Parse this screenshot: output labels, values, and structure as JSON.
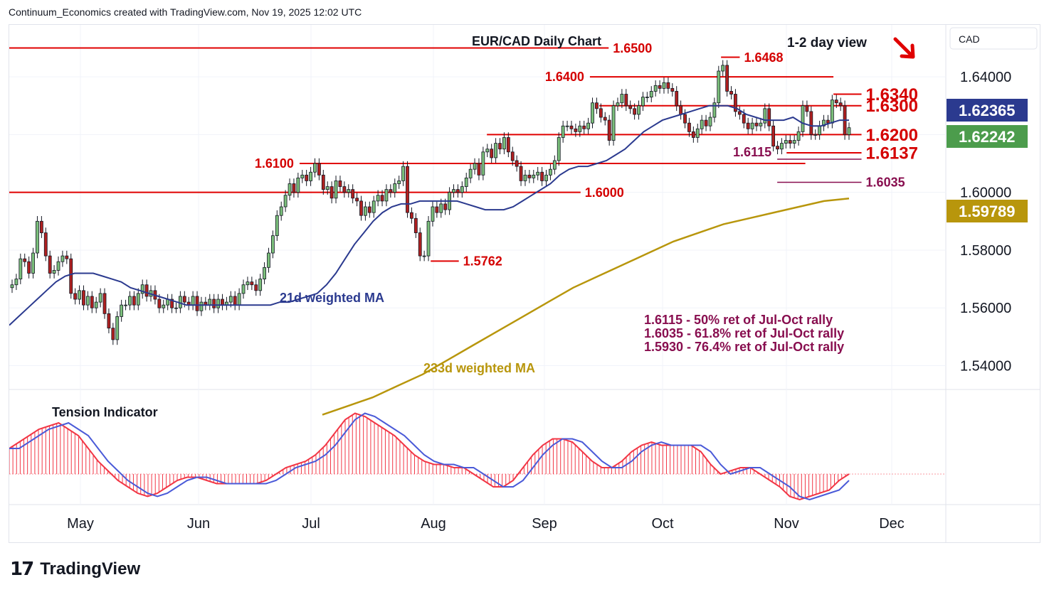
{
  "attribution": "Continuum_Economics created with TradingView.com, Nov 19, 2025 12:02 UTC",
  "brand": {
    "mark": "17",
    "name": "TradingView"
  },
  "colors": {
    "level_line": "#e00000",
    "level_text": "#d40000",
    "fib_line": "#880e4f",
    "fib_text": "#880e4f",
    "ma21": "#2b3a8f",
    "ma233": "#b8960c",
    "candle_up": "#7bbf7b",
    "candle_down": "#b02020",
    "tension_line_red": "#f23645",
    "tension_line_blue": "#4a5ad8",
    "price_tag_blue": "#2b3a8f",
    "price_tag_green": "#4c9c4c",
    "price_tag_gold": "#b8960c"
  },
  "chart_data": {
    "type": "candlestick",
    "title": "EUR/CAD Daily Chart",
    "subtitle": "1-2 day view",
    "direction_icon": "arrow-down-right-icon",
    "currency": "CAD",
    "ylim": [
      1.532,
      1.658
    ],
    "y_ticks": [
      "1.54000",
      "1.56000",
      "1.58000",
      "1.60000",
      "1.62000",
      "1.64000"
    ],
    "x_ticks": [
      "May",
      "Jun",
      "Jul",
      "Aug",
      "Sep",
      "Oct",
      "Nov",
      "Dec"
    ],
    "price_tags": [
      {
        "value": 1.62365,
        "label": "1.62365",
        "color": "#2b3a8f"
      },
      {
        "value": 1.62242,
        "label": "1.62242",
        "color": "#4c9c4c"
      },
      {
        "value": 1.59789,
        "label": "1.59789",
        "color": "#b8960c"
      }
    ],
    "closes": [
      1.568,
      1.57,
      1.577,
      1.576,
      1.572,
      1.579,
      1.59,
      1.586,
      1.578,
      1.572,
      1.573,
      1.576,
      1.578,
      1.577,
      1.565,
      1.563,
      1.566,
      1.561,
      1.564,
      1.56,
      1.562,
      1.565,
      1.558,
      1.553,
      1.549,
      1.557,
      1.561,
      1.561,
      1.564,
      1.561,
      1.565,
      1.568,
      1.564,
      1.566,
      1.563,
      1.56,
      1.561,
      1.563,
      1.56,
      1.56,
      1.564,
      1.562,
      1.561,
      1.564,
      1.559,
      1.562,
      1.561,
      1.563,
      1.56,
      1.563,
      1.561,
      1.562,
      1.564,
      1.561,
      1.565,
      1.568,
      1.569,
      1.568,
      1.566,
      1.57,
      1.574,
      1.579,
      1.585,
      1.592,
      1.595,
      1.599,
      1.603,
      1.6,
      1.605,
      1.606,
      1.604,
      1.607,
      1.61,
      1.606,
      1.601,
      1.602,
      1.598,
      1.604,
      1.602,
      1.6,
      1.601,
      1.598,
      1.597,
      1.592,
      1.595,
      1.593,
      1.597,
      1.599,
      1.597,
      1.601,
      1.6,
      1.603,
      1.604,
      1.609,
      1.593,
      1.591,
      1.586,
      1.578,
      1.578,
      1.59,
      1.595,
      1.593,
      1.596,
      1.594,
      1.6,
      1.601,
      1.6,
      1.602,
      1.605,
      1.608,
      1.61,
      1.606,
      1.614,
      1.615,
      1.612,
      1.617,
      1.615,
      1.619,
      1.614,
      1.611,
      1.609,
      1.604,
      1.606,
      1.605,
      1.606,
      1.607,
      1.604,
      1.606,
      1.608,
      1.611,
      1.619,
      1.623,
      1.623,
      1.622,
      1.621,
      1.623,
      1.622,
      1.624,
      1.631,
      1.629,
      1.626,
      1.625,
      1.618,
      1.63,
      1.631,
      1.634,
      1.63,
      1.629,
      1.627,
      1.63,
      1.633,
      1.633,
      1.635,
      1.637,
      1.636,
      1.638,
      1.636,
      1.635,
      1.63,
      1.627,
      1.624,
      1.621,
      1.619,
      1.622,
      1.625,
      1.623,
      1.626,
      1.631,
      1.642,
      1.644,
      1.635,
      1.634,
      1.628,
      1.627,
      1.624,
      1.622,
      1.624,
      1.623,
      1.624,
      1.629,
      1.623,
      1.616,
      1.615,
      1.617,
      1.618,
      1.617,
      1.618,
      1.621,
      1.63,
      1.628,
      1.62,
      1.62,
      1.623,
      1.625,
      1.624,
      1.632,
      1.631,
      1.63,
      1.62,
      1.6224
    ],
    "ma21_approx": [
      1.554,
      1.557,
      1.56,
      1.563,
      1.566,
      1.569,
      1.571,
      1.572,
      1.572,
      1.572,
      1.571,
      1.57,
      1.569,
      1.567,
      1.566,
      1.565,
      1.564,
      1.563,
      1.562,
      1.561,
      1.561,
      1.561,
      1.561,
      1.561,
      1.561,
      1.561,
      1.561,
      1.561,
      1.561,
      1.562,
      1.562,
      1.563,
      1.564,
      1.565,
      1.568,
      1.572,
      1.577,
      1.582,
      1.586,
      1.59,
      1.593,
      1.595,
      1.596,
      1.596,
      1.597,
      1.597,
      1.597,
      1.597,
      1.597,
      1.596,
      1.595,
      1.594,
      1.594,
      1.594,
      1.595,
      1.597,
      1.599,
      1.601,
      1.603,
      1.606,
      1.608,
      1.609,
      1.609,
      1.61,
      1.611,
      1.613,
      1.615,
      1.618,
      1.621,
      1.623,
      1.625,
      1.626,
      1.627,
      1.628,
      1.629,
      1.63,
      1.63,
      1.63,
      1.629,
      1.627,
      1.626,
      1.625,
      1.625,
      1.625,
      1.626,
      1.624,
      1.623,
      1.623,
      1.624,
      1.625,
      1.625
    ],
    "ma233_approx": [
      1.523,
      1.526,
      1.529,
      1.533,
      1.537,
      1.542,
      1.547,
      1.552,
      1.557,
      1.562,
      1.567,
      1.571,
      1.575,
      1.579,
      1.583,
      1.586,
      1.589,
      1.591,
      1.593,
      1.595,
      1.597,
      1.5979
    ],
    "tension_indicator": {
      "label": "Tension Indicator",
      "values": [
        0.4,
        0.5,
        0.6,
        0.7,
        0.75,
        0.8,
        0.7,
        0.6,
        0.4,
        0.2,
        0.05,
        -0.1,
        -0.2,
        -0.3,
        -0.35,
        -0.3,
        -0.2,
        -0.1,
        -0.05,
        -0.05,
        -0.1,
        -0.15,
        -0.15,
        -0.15,
        -0.15,
        -0.15,
        -0.1,
        0.0,
        0.1,
        0.15,
        0.2,
        0.3,
        0.45,
        0.65,
        0.85,
        0.95,
        0.9,
        0.8,
        0.7,
        0.6,
        0.45,
        0.3,
        0.2,
        0.15,
        0.15,
        0.1,
        0.1,
        0.0,
        -0.1,
        -0.2,
        -0.2,
        -0.1,
        0.1,
        0.3,
        0.45,
        0.55,
        0.55,
        0.5,
        0.35,
        0.2,
        0.1,
        0.1,
        0.2,
        0.35,
        0.45,
        0.5,
        0.45,
        0.45,
        0.45,
        0.45,
        0.35,
        0.15,
        0.0,
        0.05,
        0.1,
        0.1,
        0.0,
        -0.1,
        -0.2,
        -0.35,
        -0.4,
        -0.35,
        -0.3,
        -0.25,
        -0.1,
        0.0
      ]
    },
    "levels": [
      {
        "value": 1.65,
        "label": "1.6500",
        "from": 0.0,
        "to": 0.64,
        "label_side": "right"
      },
      {
        "value": 1.6468,
        "label": "1.6468",
        "from": 0.76,
        "to": 0.78,
        "label_side": "right"
      },
      {
        "value": 1.64,
        "label": "1.6400",
        "from": 0.62,
        "to": 0.88,
        "label_side": "left"
      },
      {
        "value": 1.634,
        "label": "1.6340",
        "from": 0.88,
        "to": 0.91,
        "label_side": "right"
      },
      {
        "value": 1.63,
        "label": "1.6300",
        "from": 0.63,
        "to": 0.91,
        "label_side": "right"
      },
      {
        "value": 1.62,
        "label": "1.6200",
        "from": 0.51,
        "to": 0.91,
        "label_side": "right"
      },
      {
        "value": 1.6137,
        "label": "1.6137",
        "from": 0.83,
        "to": 0.91,
        "label_side": "right"
      },
      {
        "value": 1.61,
        "label": "1.6100",
        "from": 0.31,
        "to": 0.85,
        "label_side": "left"
      },
      {
        "value": 1.6,
        "label": "1.6000",
        "from": 0.0,
        "to": 0.61,
        "label_side": "right"
      },
      {
        "value": 1.5762,
        "label": "1.5762",
        "from": 0.45,
        "to": 0.48,
        "label_side": "right"
      }
    ],
    "fib_levels": [
      {
        "value": 1.6115,
        "label": "1.6115",
        "from": 0.82,
        "to": 0.91,
        "label_side": "left"
      },
      {
        "value": 1.6035,
        "label": "1.6035",
        "from": 0.82,
        "to": 0.91,
        "label_side": "right"
      }
    ],
    "annotations": {
      "ma21_label": "21d weighted MA",
      "ma233_label": "233d weighted MA",
      "retracements": [
        "1.6115 - 50% ret of Jul-Oct rally",
        "1.6035 - 61.8% ret of Jul-Oct rally",
        "1.5930 - 76.4% ret of Jul-Oct rally"
      ]
    }
  }
}
